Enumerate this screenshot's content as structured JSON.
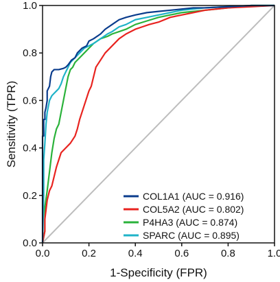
{
  "chart_data": {
    "type": "line",
    "title": "",
    "xlabel": "1-Specificity (FPR)",
    "ylabel": "Sensitivity (TPR)",
    "xlim": [
      0,
      1
    ],
    "ylim": [
      0,
      1
    ],
    "xticks": [
      "0.0",
      "0.2",
      "0.4",
      "0.6",
      "0.8",
      "1.0"
    ],
    "yticks": [
      "0.0",
      "0.2",
      "0.4",
      "0.6",
      "0.8",
      "1.0"
    ],
    "grid": false,
    "legend_position": "bottom-right",
    "reference_line": {
      "from": [
        0,
        0
      ],
      "to": [
        1,
        1
      ],
      "color": "#bdbdbd"
    },
    "series": [
      {
        "name": "COL1A1 (AUC = 0.916)",
        "color": "#0a3c8c",
        "x": [
          0,
          0,
          0.005,
          0.005,
          0.01,
          0.01,
          0.015,
          0.02,
          0.02,
          0.03,
          0.035,
          0.04,
          0.05,
          0.07,
          0.09,
          0.1,
          0.11,
          0.125,
          0.14,
          0.15,
          0.17,
          0.19,
          0.2,
          0.22,
          0.25,
          0.27,
          0.3,
          0.33,
          0.36,
          0.4,
          0.45,
          0.5,
          0.55,
          0.6,
          0.65,
          0.7,
          0.8,
          0.9,
          1.0
        ],
        "y": [
          0,
          0.45,
          0.45,
          0.52,
          0.52,
          0.55,
          0.57,
          0.6,
          0.64,
          0.66,
          0.7,
          0.72,
          0.73,
          0.73,
          0.735,
          0.74,
          0.75,
          0.77,
          0.78,
          0.8,
          0.82,
          0.83,
          0.85,
          0.86,
          0.88,
          0.9,
          0.92,
          0.94,
          0.95,
          0.96,
          0.97,
          0.975,
          0.98,
          0.985,
          0.99,
          0.99,
          0.995,
          1.0,
          1.0
        ]
      },
      {
        "name": "COL5A2 (AUC = 0.802)",
        "color": "#e8231f",
        "x": [
          0,
          0.01,
          0.01,
          0.02,
          0.03,
          0.04,
          0.05,
          0.06,
          0.07,
          0.08,
          0.1,
          0.12,
          0.14,
          0.15,
          0.16,
          0.17,
          0.18,
          0.19,
          0.2,
          0.21,
          0.22,
          0.23,
          0.25,
          0.27,
          0.3,
          0.33,
          0.36,
          0.4,
          0.43,
          0.46,
          0.5,
          0.55,
          0.6,
          0.65,
          0.7,
          0.8,
          0.9,
          1.0
        ],
        "y": [
          0,
          0.05,
          0.1,
          0.18,
          0.22,
          0.24,
          0.28,
          0.32,
          0.35,
          0.38,
          0.4,
          0.42,
          0.45,
          0.48,
          0.52,
          0.55,
          0.58,
          0.61,
          0.64,
          0.66,
          0.7,
          0.74,
          0.77,
          0.8,
          0.83,
          0.86,
          0.88,
          0.9,
          0.91,
          0.92,
          0.93,
          0.95,
          0.96,
          0.97,
          0.98,
          0.99,
          0.995,
          1.0
        ]
      },
      {
        "name": "P4HA3 (AUC = 0.874)",
        "color": "#2ab23a",
        "x": [
          0,
          0.01,
          0.01,
          0.02,
          0.03,
          0.04,
          0.05,
          0.06,
          0.07,
          0.08,
          0.09,
          0.1,
          0.11,
          0.12,
          0.13,
          0.14,
          0.16,
          0.18,
          0.2,
          0.22,
          0.25,
          0.28,
          0.3,
          0.33,
          0.36,
          0.4,
          0.45,
          0.5,
          0.55,
          0.6,
          0.7,
          0.8,
          0.9,
          1.0
        ],
        "y": [
          0,
          0.05,
          0.15,
          0.22,
          0.3,
          0.38,
          0.44,
          0.48,
          0.5,
          0.55,
          0.6,
          0.65,
          0.7,
          0.73,
          0.74,
          0.76,
          0.78,
          0.8,
          0.82,
          0.84,
          0.86,
          0.87,
          0.88,
          0.89,
          0.9,
          0.92,
          0.935,
          0.95,
          0.96,
          0.97,
          0.98,
          0.99,
          1.0,
          1.0
        ]
      },
      {
        "name": "SPARC (AUC = 0.895)",
        "color": "#1fb3c8",
        "x": [
          0,
          0.005,
          0.005,
          0.01,
          0.015,
          0.02,
          0.03,
          0.04,
          0.05,
          0.06,
          0.07,
          0.08,
          0.09,
          0.1,
          0.11,
          0.12,
          0.14,
          0.16,
          0.18,
          0.2,
          0.22,
          0.25,
          0.28,
          0.3,
          0.33,
          0.36,
          0.4,
          0.45,
          0.5,
          0.55,
          0.6,
          0.65,
          0.7,
          0.8,
          0.9,
          1.0
        ],
        "y": [
          0,
          0.2,
          0.35,
          0.42,
          0.5,
          0.55,
          0.6,
          0.62,
          0.63,
          0.64,
          0.65,
          0.67,
          0.7,
          0.72,
          0.74,
          0.76,
          0.78,
          0.8,
          0.82,
          0.83,
          0.84,
          0.86,
          0.88,
          0.89,
          0.91,
          0.92,
          0.94,
          0.95,
          0.96,
          0.97,
          0.98,
          0.985,
          0.99,
          0.995,
          1.0,
          1.0
        ]
      }
    ]
  }
}
